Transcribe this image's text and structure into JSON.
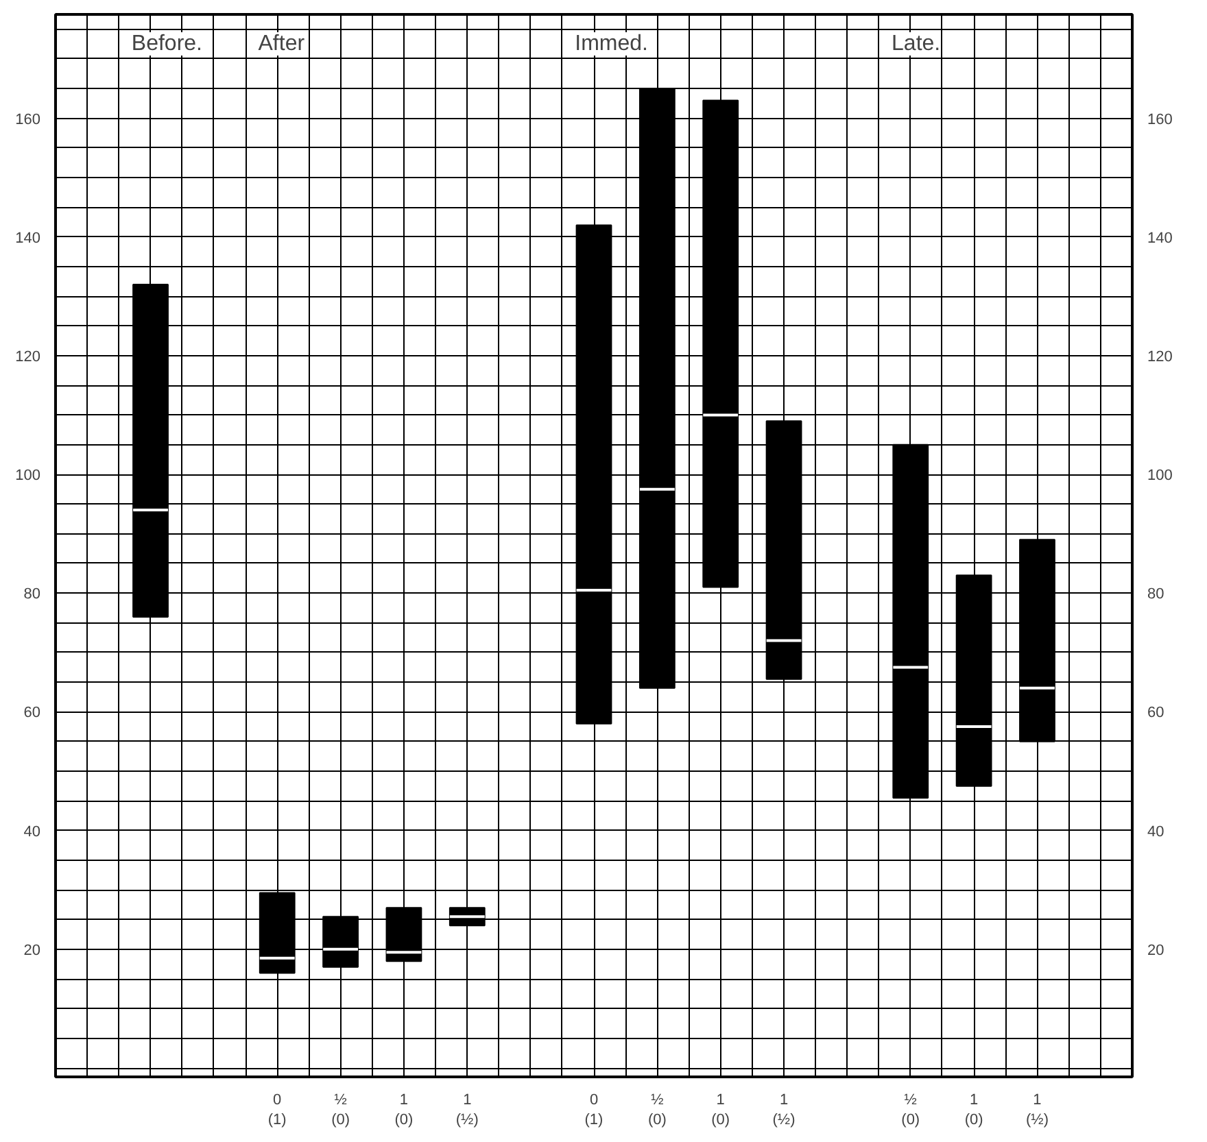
{
  "chart_data": {
    "type": "box",
    "grid": true,
    "color": "#000000",
    "annotations": [
      "Before.",
      "After",
      "Immed.",
      "Late."
    ],
    "categories": [
      null,
      null,
      "0\n(1)",
      "½\n(0)",
      "1\n(0)",
      "1\n(½)",
      null,
      "0\n(1)",
      "½\n(0)",
      "1\n(0)",
      "1\n(½)",
      null,
      "½\n(0)",
      "1\n(0)",
      "1\n(½)"
    ],
    "boxes": [
      {
        "low": 76,
        "q1": 76,
        "median": 94,
        "q3": 132,
        "high": 132
      },
      null,
      {
        "low": 16,
        "q1": 16,
        "median": 18.5,
        "q3": 29.5,
        "high": 29.5
      },
      {
        "low": 17,
        "q1": 17,
        "median": 20,
        "q3": 25.5,
        "high": 25.5
      },
      {
        "low": 18,
        "q1": 18,
        "median": 19.5,
        "q3": 27,
        "high": 27
      },
      {
        "low": 24,
        "q1": 24,
        "median": 25.5,
        "q3": 27,
        "high": 27
      },
      null,
      {
        "low": 58,
        "q1": 58,
        "median": 80.5,
        "q3": 142,
        "high": 142
      },
      {
        "low": 64,
        "q1": 64,
        "median": 97.5,
        "q3": 165,
        "high": 165
      },
      {
        "low": 81,
        "q1": 81,
        "median": 110,
        "q3": 163,
        "high": 163
      },
      {
        "low": 65.5,
        "q1": 65.5,
        "median": 72,
        "q3": 109,
        "high": 109
      },
      null,
      {
        "low": 45.5,
        "q1": 45.5,
        "median": 67.5,
        "q3": 105,
        "high": 105
      },
      {
        "low": 47.5,
        "q1": 47.5,
        "median": 57.5,
        "q3": 83,
        "high": 83
      },
      {
        "low": 55,
        "q1": 55,
        "median": 64,
        "q3": 89,
        "high": 89
      }
    ],
    "ylim": [
      -1.5,
      177.5
    ],
    "yticks": [
      {
        "value": 0,
        "label": null
      },
      {
        "value": 5,
        "label": null
      },
      {
        "value": 10,
        "label": null
      },
      {
        "value": 15,
        "label": null
      },
      20,
      {
        "value": 25,
        "label": null
      },
      {
        "value": 30,
        "label": null
      },
      {
        "value": 35,
        "label": null
      },
      40,
      {
        "value": 45,
        "label": null
      },
      {
        "value": 50,
        "label": null
      },
      {
        "value": 55,
        "label": null
      },
      60,
      {
        "value": 65,
        "label": null
      },
      {
        "value": 70,
        "label": null
      },
      {
        "value": 75,
        "label": null
      },
      80,
      {
        "value": 85,
        "label": null
      },
      {
        "value": 90,
        "label": null
      },
      {
        "value": 95,
        "label": null
      },
      100,
      {
        "value": 105,
        "label": null
      },
      {
        "value": 110,
        "label": null
      },
      {
        "value": 115,
        "label": null
      },
      120,
      {
        "value": 125,
        "label": null
      },
      {
        "value": 130,
        "label": null
      },
      {
        "value": 135,
        "label": null
      },
      140,
      {
        "value": 145,
        "label": null
      },
      {
        "value": 150,
        "label": null
      },
      {
        "value": 155,
        "label": null
      },
      160,
      {
        "value": 165,
        "label": null
      },
      {
        "value": 170,
        "label": null
      },
      {
        "value": 175,
        "label": null
      }
    ],
    "y2lim": [
      -1.5,
      177.5
    ],
    "y2ticks": [
      20,
      40,
      60,
      80,
      100,
      120,
      140,
      160
    ]
  }
}
